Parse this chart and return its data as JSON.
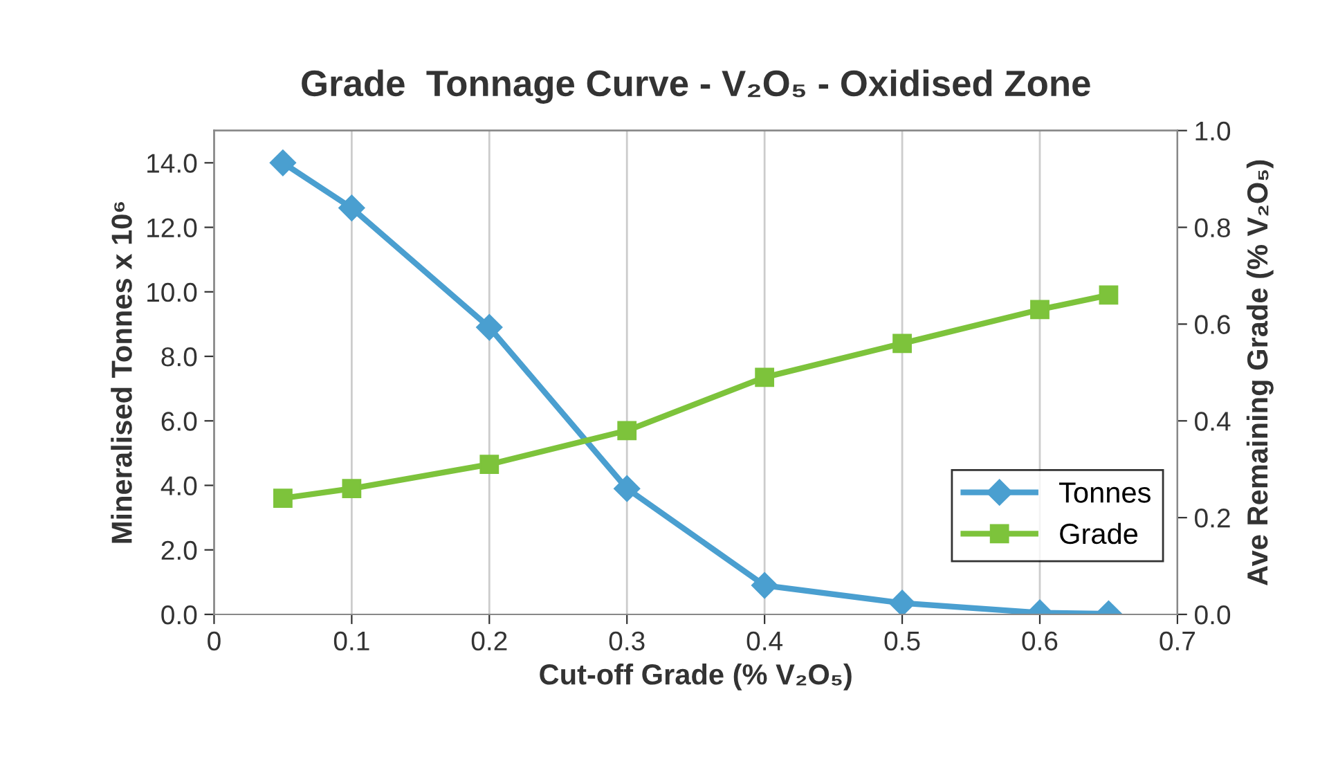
{
  "chart_data": {
    "type": "line",
    "title": "Grade  Tonnage Curve - V₂O₅ - Oxidised Zone",
    "xlabel": "Cut-off Grade (% V₂O₅)",
    "ylabel": "Mineralised Tonnes x 10⁶",
    "y2label": "Ave Remaining Grade (% V₂O₅)",
    "x": [
      0.05,
      0.1,
      0.2,
      0.3,
      0.4,
      0.5,
      0.6,
      0.65
    ],
    "series": [
      {
        "name": "Tonnes",
        "color": "#4a9fd0",
        "marker": "diamond",
        "values": [
          14.0,
          12.6,
          8.9,
          3.9,
          0.9,
          0.35,
          0.05,
          0.02
        ]
      },
      {
        "name": "Grade",
        "color": "#7dc33b",
        "marker": "square",
        "axis": "y2",
        "values": [
          0.24,
          0.26,
          0.31,
          0.38,
          0.49,
          0.56,
          0.63,
          0.66
        ]
      }
    ],
    "xlim": [
      0,
      0.7
    ],
    "xticks": [
      0,
      0.1,
      0.2,
      0.3,
      0.4,
      0.5,
      0.6,
      0.7
    ],
    "ylim": [
      0,
      15
    ],
    "yticks": [
      {
        "value": 0,
        "label": "0.0"
      },
      {
        "value": 2,
        "label": "2.0"
      },
      {
        "value": 4,
        "label": "4.0"
      },
      {
        "value": 6,
        "label": "6.0"
      },
      {
        "value": 8,
        "label": "8.0"
      },
      {
        "value": 10,
        "label": "10.0"
      },
      {
        "value": 12,
        "label": "12.0"
      },
      {
        "value": 14,
        "label": "14.0"
      }
    ],
    "y2lim": [
      0,
      1.0
    ],
    "y2ticks": [
      {
        "value": 0,
        "label": "0.0"
      },
      {
        "value": 0.2,
        "label": "0.2"
      },
      {
        "value": 0.4,
        "label": "0.4"
      },
      {
        "value": 0.6,
        "label": "0.6"
      },
      {
        "value": 0.8,
        "label": "0.8"
      },
      {
        "value": 1.0,
        "label": "1.0"
      }
    ],
    "grid": "x",
    "legend": "bottom right",
    "line_style": "solid"
  }
}
